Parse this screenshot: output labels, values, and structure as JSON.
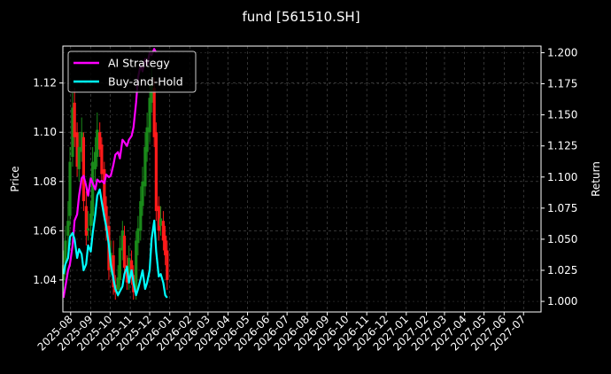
{
  "chart_data": {
    "type": "line",
    "title": "fund [561510.SH]",
    "ylabel": "Price",
    "y2label": "Return",
    "ylim": [
      1.027,
      1.135
    ],
    "y2lim": [
      0.9915,
      1.2053
    ],
    "yticks": [
      "1.04",
      "1.06",
      "1.08",
      "1.10",
      "1.12"
    ],
    "y2ticks": [
      "1.000",
      "1.025",
      "1.050",
      "1.075",
      "1.100",
      "1.125",
      "1.150",
      "1.175",
      "1.200"
    ],
    "xticks": [
      "2025-08",
      "2025-09",
      "2025-10",
      "2025-11",
      "2025-12",
      "2026-01",
      "2026-02",
      "2026-03",
      "2026-04",
      "2026-05",
      "2026-06",
      "2026-07",
      "2026-08",
      "2026-09",
      "2026-10",
      "2026-11",
      "2026-12",
      "2027-01",
      "2027-02",
      "2027-03",
      "2027-04",
      "2027-05",
      "2027-06",
      "2027-07"
    ],
    "xlim": [
      "2025-07-20",
      "2027-07-28"
    ],
    "grid": true,
    "legend_position": "top-left",
    "series": [
      {
        "name": "AI Strategy",
        "axis": "right",
        "color": "#ff00ff",
        "x": [
          "2025-07-21",
          "2025-07-24",
          "2025-07-28",
          "2025-07-31",
          "2025-08-04",
          "2025-08-07",
          "2025-08-11",
          "2025-08-14",
          "2025-08-18",
          "2025-08-21",
          "2025-08-25",
          "2025-08-28",
          "2025-09-01",
          "2025-09-04",
          "2025-09-08",
          "2025-09-11",
          "2025-09-15",
          "2025-09-18",
          "2025-09-22",
          "2025-09-25",
          "2025-09-29",
          "2025-10-02",
          "2025-10-06",
          "2025-10-09",
          "2025-10-13",
          "2025-10-16",
          "2025-10-20",
          "2025-10-23",
          "2025-10-27",
          "2025-10-30",
          "2025-11-03",
          "2025-11-06",
          "2025-11-10",
          "2025-11-13",
          "2025-11-17",
          "2025-11-20",
          "2025-11-24",
          "2025-11-27",
          "2025-12-01",
          "2025-12-04",
          "2025-12-08",
          "2025-12-11"
        ],
        "values": [
          1.003,
          1.012,
          1.025,
          1.03,
          1.045,
          1.065,
          1.07,
          1.085,
          1.099,
          1.101,
          1.093,
          1.085,
          1.099,
          1.095,
          1.09,
          1.098,
          1.096,
          1.097,
          1.095,
          1.102,
          1.1,
          1.101,
          1.11,
          1.118,
          1.12,
          1.115,
          1.13,
          1.128,
          1.125,
          1.13,
          1.133,
          1.14,
          1.16,
          1.18,
          1.19,
          1.185,
          1.195,
          1.19,
          1.2,
          1.198,
          1.203,
          1.2
        ]
      },
      {
        "name": "Buy-and-Hold",
        "axis": "right",
        "color": "#00ffff",
        "x": [
          "2025-07-21",
          "2025-07-24",
          "2025-07-28",
          "2025-07-31",
          "2025-08-04",
          "2025-08-07",
          "2025-08-11",
          "2025-08-14",
          "2025-08-18",
          "2025-08-21",
          "2025-08-25",
          "2025-08-28",
          "2025-09-01",
          "2025-09-04",
          "2025-09-08",
          "2025-09-11",
          "2025-09-15",
          "2025-09-18",
          "2025-09-22",
          "2025-09-25",
          "2025-09-29",
          "2025-10-02",
          "2025-10-06",
          "2025-10-09",
          "2025-10-13",
          "2025-10-16",
          "2025-10-20",
          "2025-10-23",
          "2025-10-27",
          "2025-10-30",
          "2025-11-03",
          "2025-11-06",
          "2025-11-10",
          "2025-11-13",
          "2025-11-17",
          "2025-11-20",
          "2025-11-24",
          "2025-11-27",
          "2025-12-01",
          "2025-12-04",
          "2025-12-08",
          "2025-12-11",
          "2025-12-15",
          "2025-12-18",
          "2025-12-22",
          "2025-12-25",
          "2025-12-28"
        ],
        "values": [
          1.022,
          1.03,
          1.035,
          1.052,
          1.055,
          1.05,
          1.035,
          1.042,
          1.038,
          1.025,
          1.03,
          1.045,
          1.04,
          1.055,
          1.07,
          1.085,
          1.09,
          1.08,
          1.068,
          1.06,
          1.045,
          1.03,
          1.018,
          1.01,
          1.005,
          1.008,
          1.012,
          1.022,
          1.028,
          1.015,
          1.025,
          1.015,
          1.005,
          1.01,
          1.018,
          1.025,
          1.01,
          1.015,
          1.025,
          1.05,
          1.065,
          1.04,
          1.02,
          1.022,
          1.015,
          1.005,
          1.003
        ]
      },
      {
        "name": "",
        "axis": "left",
        "type": "candlestick",
        "up_color": "#1a8a1a",
        "down_color": "#ff1a1a",
        "x": [
          "2025-07-21",
          "2025-07-24",
          "2025-07-28",
          "2025-07-31",
          "2025-08-04",
          "2025-08-07",
          "2025-08-11",
          "2025-08-14",
          "2025-08-18",
          "2025-08-21",
          "2025-08-25",
          "2025-08-28",
          "2025-09-01",
          "2025-09-04",
          "2025-09-08",
          "2025-09-11",
          "2025-09-15",
          "2025-09-18",
          "2025-09-22",
          "2025-09-25",
          "2025-09-29",
          "2025-10-02",
          "2025-10-06",
          "2025-10-09",
          "2025-10-13",
          "2025-10-16",
          "2025-10-20",
          "2025-10-23",
          "2025-10-27",
          "2025-10-30",
          "2025-11-03",
          "2025-11-06",
          "2025-11-10",
          "2025-11-13",
          "2025-11-17",
          "2025-11-20",
          "2025-11-24",
          "2025-11-27",
          "2025-12-01",
          "2025-12-04",
          "2025-12-08",
          "2025-12-11",
          "2025-12-15",
          "2025-12-18",
          "2025-12-22",
          "2025-12-25",
          "2025-12-28"
        ],
        "open": [
          1.04,
          1.047,
          1.058,
          1.066,
          1.09,
          1.112,
          1.1,
          1.085,
          1.092,
          1.098,
          1.07,
          1.06,
          1.062,
          1.066,
          1.085,
          1.09,
          1.1,
          1.095,
          1.085,
          1.07,
          1.062,
          1.045,
          1.05,
          1.038,
          1.036,
          1.04,
          1.052,
          1.058,
          1.046,
          1.04,
          1.048,
          1.042,
          1.036,
          1.055,
          1.06,
          1.07,
          1.078,
          1.092,
          1.1,
          1.112,
          1.118,
          1.1,
          1.07,
          1.062,
          1.064,
          1.058,
          1.052
        ],
        "close": [
          1.046,
          1.056,
          1.064,
          1.088,
          1.11,
          1.098,
          1.086,
          1.094,
          1.1,
          1.072,
          1.058,
          1.061,
          1.067,
          1.088,
          1.092,
          1.101,
          1.093,
          1.083,
          1.068,
          1.06,
          1.044,
          1.051,
          1.037,
          1.035,
          1.041,
          1.053,
          1.06,
          1.045,
          1.039,
          1.049,
          1.041,
          1.035,
          1.056,
          1.061,
          1.072,
          1.08,
          1.094,
          1.102,
          1.114,
          1.12,
          1.098,
          1.068,
          1.06,
          1.065,
          1.056,
          1.05,
          1.04
        ],
        "high": [
          1.052,
          1.062,
          1.072,
          1.094,
          1.116,
          1.118,
          1.104,
          1.1,
          1.106,
          1.1,
          1.076,
          1.068,
          1.072,
          1.094,
          1.098,
          1.108,
          1.104,
          1.098,
          1.088,
          1.074,
          1.066,
          1.056,
          1.056,
          1.042,
          1.046,
          1.058,
          1.064,
          1.062,
          1.05,
          1.054,
          1.052,
          1.046,
          1.06,
          1.066,
          1.078,
          1.086,
          1.1,
          1.108,
          1.12,
          1.126,
          1.122,
          1.104,
          1.074,
          1.07,
          1.068,
          1.062,
          1.056
        ],
        "low": [
          1.034,
          1.042,
          1.052,
          1.062,
          1.086,
          1.094,
          1.082,
          1.08,
          1.088,
          1.068,
          1.054,
          1.056,
          1.058,
          1.062,
          1.08,
          1.086,
          1.09,
          1.08,
          1.064,
          1.056,
          1.04,
          1.042,
          1.034,
          1.032,
          1.033,
          1.036,
          1.048,
          1.042,
          1.036,
          1.036,
          1.038,
          1.032,
          1.032,
          1.05,
          1.056,
          1.066,
          1.074,
          1.088,
          1.096,
          1.108,
          1.094,
          1.064,
          1.056,
          1.058,
          1.052,
          1.046,
          1.036
        ]
      }
    ]
  }
}
